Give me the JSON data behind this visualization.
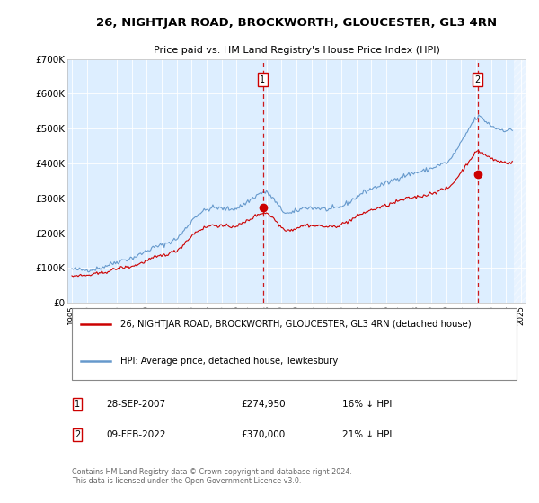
{
  "title": "26, NIGHTJAR ROAD, BROCKWORTH, GLOUCESTER, GL3 4RN",
  "subtitle": "Price paid vs. HM Land Registry's House Price Index (HPI)",
  "footer": "Contains HM Land Registry data © Crown copyright and database right 2024.\nThis data is licensed under the Open Government Licence v3.0.",
  "legend_line1": "26, NIGHTJAR ROAD, BROCKWORTH, GLOUCESTER, GL3 4RN (detached house)",
  "legend_line2": "HPI: Average price, detached house, Tewkesbury",
  "annotation1_label": "1",
  "annotation1_date": "28-SEP-2007",
  "annotation1_price": "£274,950",
  "annotation1_hpi": "16% ↓ HPI",
  "annotation2_label": "2",
  "annotation2_date": "09-FEB-2022",
  "annotation2_price": "£370,000",
  "annotation2_hpi": "21% ↓ HPI",
  "hpi_color": "#6699cc",
  "price_color": "#cc0000",
  "annotation_color": "#cc0000",
  "plot_bg": "#ddeeff",
  "ylim": [
    0,
    700000
  ],
  "yticks": [
    0,
    100000,
    200000,
    300000,
    400000,
    500000,
    600000,
    700000
  ],
  "ytick_labels": [
    "£0",
    "£100K",
    "£200K",
    "£300K",
    "£400K",
    "£500K",
    "£600K",
    "£700K"
  ],
  "purchase1_x": 2007.75,
  "purchase1_y": 274950,
  "purchase2_x": 2022.1,
  "purchase2_y": 370000,
  "xmin": 1994.7,
  "xmax": 2025.3
}
